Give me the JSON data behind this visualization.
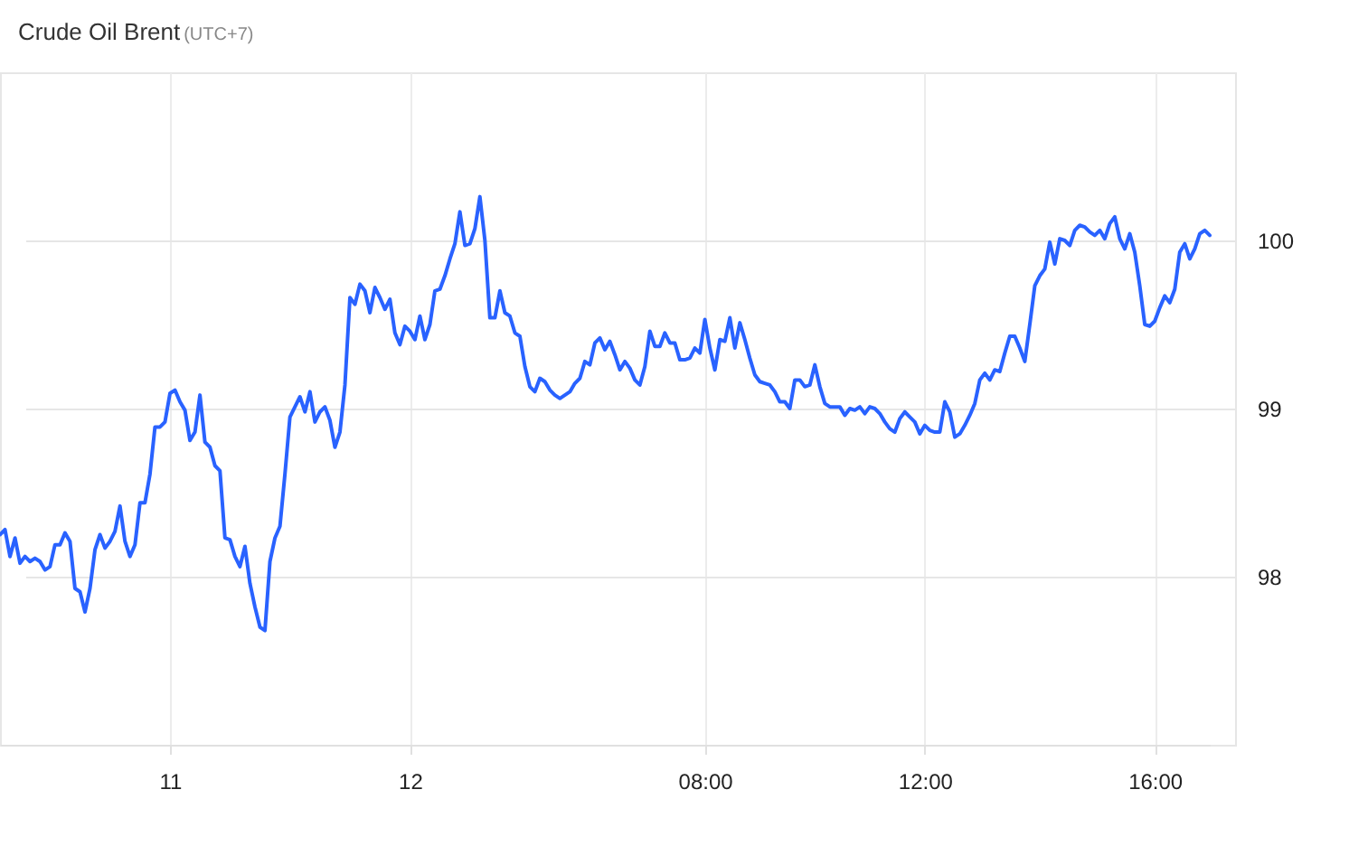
{
  "chart_data": {
    "type": "line",
    "title": "Crude Oil Brent",
    "subtitle": "(UTC+7)",
    "categories": [
      null,
      null,
      null,
      null,
      null,
      null,
      null,
      null,
      null,
      null,
      null,
      null,
      null,
      null,
      null,
      null,
      null,
      null,
      null,
      null,
      null,
      null,
      null,
      null,
      null,
      null,
      null,
      null,
      null,
      null,
      null,
      null,
      null,
      null,
      "11",
      null,
      null,
      null,
      null,
      null,
      null,
      null,
      null,
      null,
      null,
      null,
      null,
      null,
      null,
      null,
      null,
      null,
      null,
      null,
      null,
      null,
      null,
      null,
      null,
      null,
      null,
      null,
      null,
      null,
      null,
      null,
      null,
      null,
      null,
      null,
      null,
      null,
      null,
      null,
      null,
      null,
      null,
      null,
      null,
      null,
      null,
      null,
      "12",
      null,
      null,
      null,
      null,
      null,
      null,
      null,
      null,
      null,
      null,
      null,
      null,
      null,
      null,
      null,
      null,
      null,
      null,
      null,
      null,
      null,
      null,
      null,
      null,
      null,
      null,
      null,
      null,
      null,
      null,
      null,
      null,
      null,
      null,
      null,
      null,
      null,
      null,
      null,
      null,
      null,
      null,
      null,
      null,
      null,
      null,
      null,
      null,
      null,
      null,
      null,
      null,
      null,
      null,
      null,
      null,
      null,
      null,
      "08:00",
      null,
      null,
      null,
      null,
      null,
      null,
      null,
      null,
      null,
      null,
      null,
      null,
      null,
      null,
      null,
      null,
      null,
      null,
      null,
      null,
      null,
      null,
      null,
      null,
      null,
      null,
      null,
      null,
      null,
      null,
      null,
      null,
      null,
      null,
      null,
      null,
      null,
      null,
      null,
      null,
      null,
      null,
      null,
      "12:00",
      null,
      null,
      null,
      null,
      null,
      null,
      null,
      null,
      null,
      null,
      null,
      null,
      null,
      null,
      null,
      null,
      null,
      null,
      null,
      null,
      null,
      null,
      null,
      null,
      null,
      null,
      null,
      null,
      null,
      null,
      null,
      null,
      null,
      null,
      null,
      null,
      null,
      null,
      null,
      null,
      null,
      null,
      null,
      null,
      null,
      "16:00",
      null,
      null,
      null,
      null,
      null,
      null,
      null,
      null,
      null,
      null,
      null
    ],
    "series": [
      {
        "color": "#2962ff",
        "values": [
          98.25,
          98.28,
          98.12,
          98.23,
          98.08,
          98.12,
          98.09,
          98.11,
          98.09,
          98.04,
          98.06,
          98.19,
          98.19,
          98.26,
          98.21,
          97.93,
          97.91,
          97.79,
          97.93,
          98.16,
          98.25,
          98.17,
          98.21,
          98.27,
          98.42,
          98.21,
          98.12,
          98.19,
          98.44,
          98.44,
          98.61,
          98.89,
          98.89,
          98.92,
          99.09,
          99.11,
          99.04,
          98.99,
          98.81,
          98.86,
          99.08,
          98.8,
          98.77,
          98.66,
          98.63,
          98.23,
          98.22,
          98.12,
          98.06,
          98.18,
          97.96,
          97.82,
          97.7,
          97.68,
          98.09,
          98.23,
          98.3,
          98.61,
          98.95,
          99.01,
          99.07,
          98.98,
          99.1,
          98.92,
          98.98,
          99.01,
          98.93,
          98.77,
          98.86,
          99.14,
          99.66,
          99.62,
          99.74,
          99.7,
          99.57,
          99.72,
          99.66,
          99.59,
          99.65,
          99.45,
          99.38,
          99.49,
          99.46,
          99.41,
          99.55,
          99.41,
          99.5,
          99.7,
          99.71,
          99.79,
          99.89,
          99.98,
          100.17,
          99.97,
          99.98,
          100.07,
          100.26,
          100,
          99.54,
          99.54,
          99.7,
          99.57,
          99.55,
          99.45,
          99.43,
          99.25,
          99.13,
          99.1,
          99.18,
          99.16,
          99.11,
          99.08,
          99.06,
          99.08,
          99.1,
          99.15,
          99.18,
          99.28,
          99.26,
          99.39,
          99.42,
          99.35,
          99.4,
          99.32,
          99.23,
          99.28,
          99.24,
          99.17,
          99.14,
          99.25,
          99.46,
          99.37,
          99.37,
          99.45,
          99.39,
          99.39,
          99.29,
          99.29,
          99.3,
          99.36,
          99.33,
          99.53,
          99.36,
          99.23,
          99.41,
          99.4,
          99.54,
          99.36,
          99.51,
          99.41,
          99.3,
          99.2,
          99.16,
          99.15,
          99.14,
          99.1,
          99.04,
          99.04,
          99,
          99.17,
          99.17,
          99.13,
          99.14,
          99.26,
          99.13,
          99.03,
          99.01,
          99.01,
          99.01,
          98.96,
          99,
          98.99,
          99.01,
          98.97,
          99.01,
          99,
          98.97,
          98.92,
          98.88,
          98.86,
          98.94,
          98.98,
          98.95,
          98.92,
          98.85,
          98.9,
          98.87,
          98.86,
          98.86,
          99.04,
          98.98,
          98.83,
          98.85,
          98.9,
          98.96,
          99.03,
          99.17,
          99.21,
          99.17,
          99.23,
          99.22,
          99.33,
          99.43,
          99.43,
          99.36,
          99.28,
          99.5,
          99.73,
          99.79,
          99.83,
          99.99,
          99.86,
          100.01,
          100,
          99.97,
          100.06,
          100.09,
          100.08,
          100.05,
          100.03,
          100.06,
          100.01,
          100.1,
          100.14,
          100.01,
          99.95,
          100.04,
          99.93,
          99.73,
          99.5,
          99.49,
          99.52,
          99.6,
          99.67,
          99.63,
          99.71,
          99.93,
          99.98,
          99.89,
          99.95,
          100.04,
          100.06,
          100.03
        ]
      }
    ],
    "ylim": [
      97,
      101
    ],
    "yticks": [
      98,
      99,
      100
    ],
    "grid": true,
    "line_style": "solid"
  }
}
